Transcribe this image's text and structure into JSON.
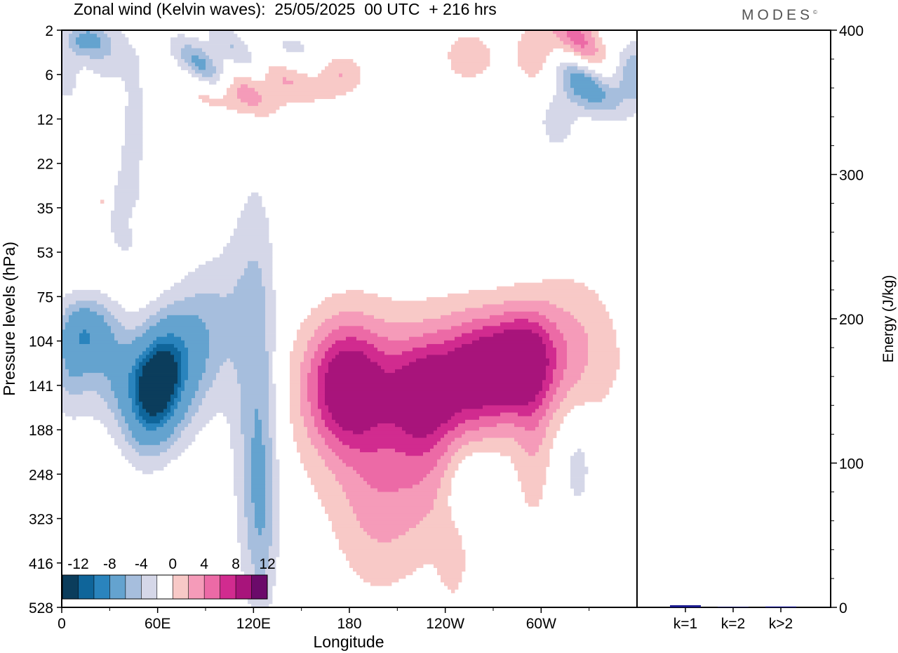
{
  "header": {
    "title": "Zonal wind (Kelvin waves):  25/05/2025  00 UTC  + 216 hrs",
    "brand": "MODES",
    "brand_mark": "©"
  },
  "chart_data": [
    {
      "type": "heatmap",
      "title": "Zonal wind (Kelvin waves):  25/05/2025  00 UTC  + 216 hrs",
      "xlabel": "Longitude",
      "ylabel": "Pressure levels (hPa)",
      "x_ticks": [
        "0",
        "60E",
        "120E",
        "180",
        "120W",
        "60W"
      ],
      "x_tick_values": [
        0,
        60,
        120,
        180,
        240,
        300
      ],
      "xlim": [
        0,
        360
      ],
      "y_ticks": [
        "2",
        "6",
        "12",
        "22",
        "35",
        "53",
        "75",
        "104",
        "141",
        "188",
        "248",
        "323",
        "416",
        "528"
      ],
      "y_scale": "pressure levels (top 2 hPa, bottom 528 hPa)",
      "colorbar": {
        "labels": [
          "-12",
          "-8",
          "-4",
          "0",
          "4",
          "8",
          "12"
        ],
        "colors": [
          "#0b3d5c",
          "#0f659a",
          "#2a84bd",
          "#64a3cf",
          "#a6bedd",
          "#d5d7e8",
          "#ffffff",
          "#f8c9c7",
          "#f59bb9",
          "#ec6aa6",
          "#d12b8f",
          "#a8147b",
          "#6b0a6a"
        ]
      },
      "features": [
        {
          "label": "negative max",
          "approx_lon": 60,
          "approx_level_hPa": 141,
          "approx_value": -14
        },
        {
          "label": "positive max",
          "approx_lon": 178,
          "approx_level_hPa": 141,
          "approx_value": 10
        },
        {
          "label": "positive max",
          "approx_lon": 262,
          "approx_level_hPa": 141,
          "approx_value": 10
        },
        {
          "label": "positive max",
          "approx_lon": 290,
          "approx_level_hPa": 104,
          "approx_value": 9
        }
      ]
    },
    {
      "type": "bar",
      "categories": [
        "k=1",
        "k=2",
        "k>2"
      ],
      "values": [
        1.5,
        0.3,
        0.6
      ],
      "ylabel": "Energy (J/kg)",
      "ylim": [
        0,
        400
      ],
      "y_ticks": [
        "0",
        "100",
        "200",
        "300",
        "400"
      ],
      "bar_color": "#1a1a8c"
    }
  ]
}
